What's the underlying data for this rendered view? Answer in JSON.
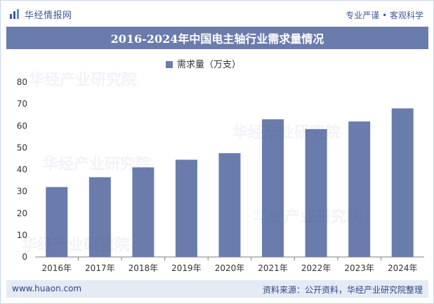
{
  "header": {
    "logo_text": "华经情报网",
    "slogan": "专业严谨 • 客观科学"
  },
  "title": "2016-2024年中国电主轴行业需求量情况",
  "footer": {
    "website": "www.huaon.com",
    "source": "资料来源：公开资料，华经产业研究院整理"
  },
  "watermark": "华经产业研究院",
  "colors": {
    "bar": "#6a7cab",
    "title_bg": "#6a7cab",
    "footer_bg": "#e4ebf5",
    "brand_text": "#3c5a9a"
  },
  "chart_data": {
    "type": "bar",
    "categories": [
      "2016年",
      "2017年",
      "2018年",
      "2019年",
      "2020年",
      "2021年",
      "2022年",
      "2023年",
      "2024年"
    ],
    "series": [
      {
        "name": "需求量（万支）",
        "values": [
          32,
          36.5,
          41,
          44.5,
          47.5,
          63,
          58.5,
          62,
          68
        ]
      }
    ],
    "ylim": [
      0,
      80
    ],
    "yticks": [
      0,
      10,
      20,
      30,
      40,
      50,
      60,
      70,
      80
    ],
    "grid": false,
    "legend_position": "top-center"
  }
}
